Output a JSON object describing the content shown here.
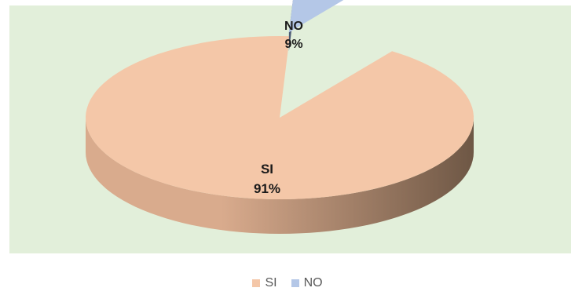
{
  "chart_data": {
    "type": "pie",
    "style": "3d-exploded",
    "slices": [
      {
        "label": "SI",
        "value": 91,
        "value_label": "91%",
        "color": "#f4c7a8",
        "side_color_light": "#d9ab8d",
        "side_color_dark": "#6e5745"
      },
      {
        "label": "NO",
        "value": 9,
        "value_label": "9%",
        "color": "#b4c7e7",
        "side_color_light": "#6e7f9a",
        "side_color_dark": "#4a5870"
      }
    ],
    "legend": {
      "placement": "bottom",
      "items": [
        {
          "label": "SI",
          "color": "#f4c7a8"
        },
        {
          "label": "NO",
          "color": "#b4c7e7"
        }
      ]
    },
    "plot_background": "#e2efda"
  }
}
